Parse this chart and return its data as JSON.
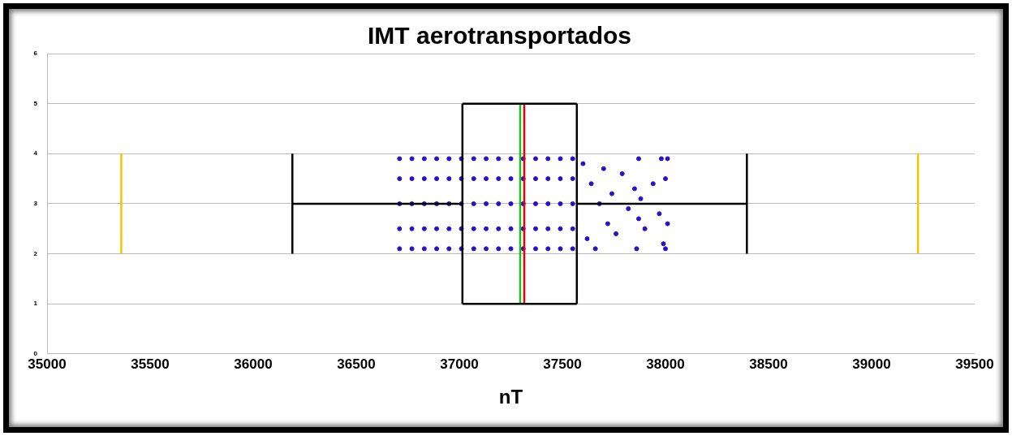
{
  "chart_data": {
    "type": "scatter",
    "title": "IMT aerotransportados",
    "xlabel": "nT",
    "xlim": [
      35000,
      39500
    ],
    "xticks": [
      35000,
      35500,
      36000,
      36500,
      37000,
      37500,
      38000,
      38500,
      39000,
      39500
    ],
    "ylim": [
      0,
      6
    ],
    "yticks": [
      0,
      1,
      2,
      3,
      4,
      5,
      6
    ],
    "grid": "y",
    "legend": false,
    "series": [
      {
        "type": "line",
        "color": "#ffc000",
        "marker": "none",
        "x": [
          35360,
          35360
        ],
        "values": [
          2,
          4
        ]
      },
      {
        "type": "line",
        "color": "#ffc000",
        "marker": "none",
        "x": [
          39225,
          39225
        ],
        "values": [
          2,
          4
        ]
      },
      {
        "type": "line",
        "color": "#000000",
        "marker": "none",
        "x": [
          36190,
          36190
        ],
        "values": [
          2,
          4
        ]
      },
      {
        "type": "line",
        "color": "#000000",
        "marker": "none",
        "x": [
          36190,
          37015
        ],
        "values": [
          3,
          3
        ]
      },
      {
        "type": "line",
        "color": "#000000",
        "marker": "none",
        "x": [
          37015,
          37015
        ],
        "values": [
          1,
          5
        ]
      },
      {
        "type": "line",
        "color": "#000000",
        "marker": "none",
        "x": [
          37015,
          37570
        ],
        "values": [
          5,
          5
        ]
      },
      {
        "type": "line",
        "color": "#000000",
        "marker": "none",
        "x": [
          37015,
          37570
        ],
        "values": [
          1,
          1
        ]
      },
      {
        "type": "line",
        "color": "#000000",
        "marker": "none",
        "x": [
          37570,
          37570
        ],
        "values": [
          1,
          5
        ]
      },
      {
        "type": "line",
        "color": "#000000",
        "marker": "none",
        "x": [
          37570,
          38395
        ],
        "values": [
          3,
          3
        ]
      },
      {
        "type": "line",
        "color": "#000000",
        "marker": "none",
        "x": [
          38395,
          38395
        ],
        "values": [
          2,
          4
        ]
      },
      {
        "type": "scatter",
        "color": "#2d0fc6",
        "marker": "circle",
        "x": [
          36710,
          36710,
          36710,
          36710,
          36710,
          36770,
          36770,
          36770,
          36770,
          36770,
          36830,
          36830,
          36830,
          36830,
          36830,
          36890,
          36890,
          36890,
          36890,
          36890,
          36950,
          36950,
          36950,
          36950,
          36950,
          37010,
          37010,
          37010,
          37010,
          37010,
          37070,
          37070,
          37070,
          37070,
          37070,
          37130,
          37130,
          37130,
          37130,
          37130,
          37190,
          37190,
          37190,
          37190,
          37190,
          37250,
          37250,
          37250,
          37250,
          37250,
          37310,
          37310,
          37310,
          37310,
          37310,
          37370,
          37370,
          37370,
          37370,
          37370,
          37430,
          37430,
          37430,
          37430,
          37430,
          37490,
          37490,
          37490,
          37490,
          37490,
          37550,
          37550,
          37550,
          37550,
          37550,
          37600,
          37620,
          37640,
          37660,
          37680,
          37700,
          37720,
          37740,
          37760,
          37790,
          37820,
          37850,
          37860,
          37870,
          37870,
          37880,
          37900,
          37940,
          37970,
          37980,
          37990,
          38000,
          38000,
          38010,
          38010
        ],
        "values": [
          2.1,
          2.5,
          3,
          3.5,
          3.9,
          2.1,
          2.5,
          3,
          3.5,
          3.9,
          2.1,
          2.5,
          3,
          3.5,
          3.9,
          2.1,
          2.5,
          3,
          3.5,
          3.9,
          2.1,
          2.5,
          3,
          3.5,
          3.9,
          2.1,
          2.5,
          3,
          3.5,
          3.9,
          2.1,
          2.5,
          3,
          3.5,
          3.9,
          2.1,
          2.5,
          3,
          3.5,
          3.9,
          2.1,
          2.5,
          3,
          3.5,
          3.9,
          2.1,
          2.5,
          3,
          3.5,
          3.9,
          2.1,
          2.5,
          3,
          3.5,
          3.9,
          2.1,
          2.5,
          3,
          3.5,
          3.9,
          2.1,
          2.5,
          3,
          3.5,
          3.9,
          2.1,
          2.5,
          3,
          3.5,
          3.9,
          2.1,
          2.5,
          3,
          3.5,
          3.9,
          3.8,
          2.3,
          3.4,
          2.1,
          3,
          3.7,
          2.6,
          3.2,
          2.4,
          3.6,
          2.9,
          3.3,
          2.1,
          3.9,
          2.7,
          3.1,
          2.5,
          3.4,
          2.8,
          3.9,
          2.2,
          3.5,
          2.1,
          3.9,
          2.6
        ]
      },
      {
        "type": "line",
        "color": "#22bb22",
        "marker": "none",
        "x": [
          37295,
          37295
        ],
        "values": [
          1,
          5
        ]
      },
      {
        "type": "line",
        "color": "#ee0000",
        "marker": "none",
        "x": [
          37315,
          37315
        ],
        "values": [
          1,
          5
        ]
      }
    ]
  }
}
